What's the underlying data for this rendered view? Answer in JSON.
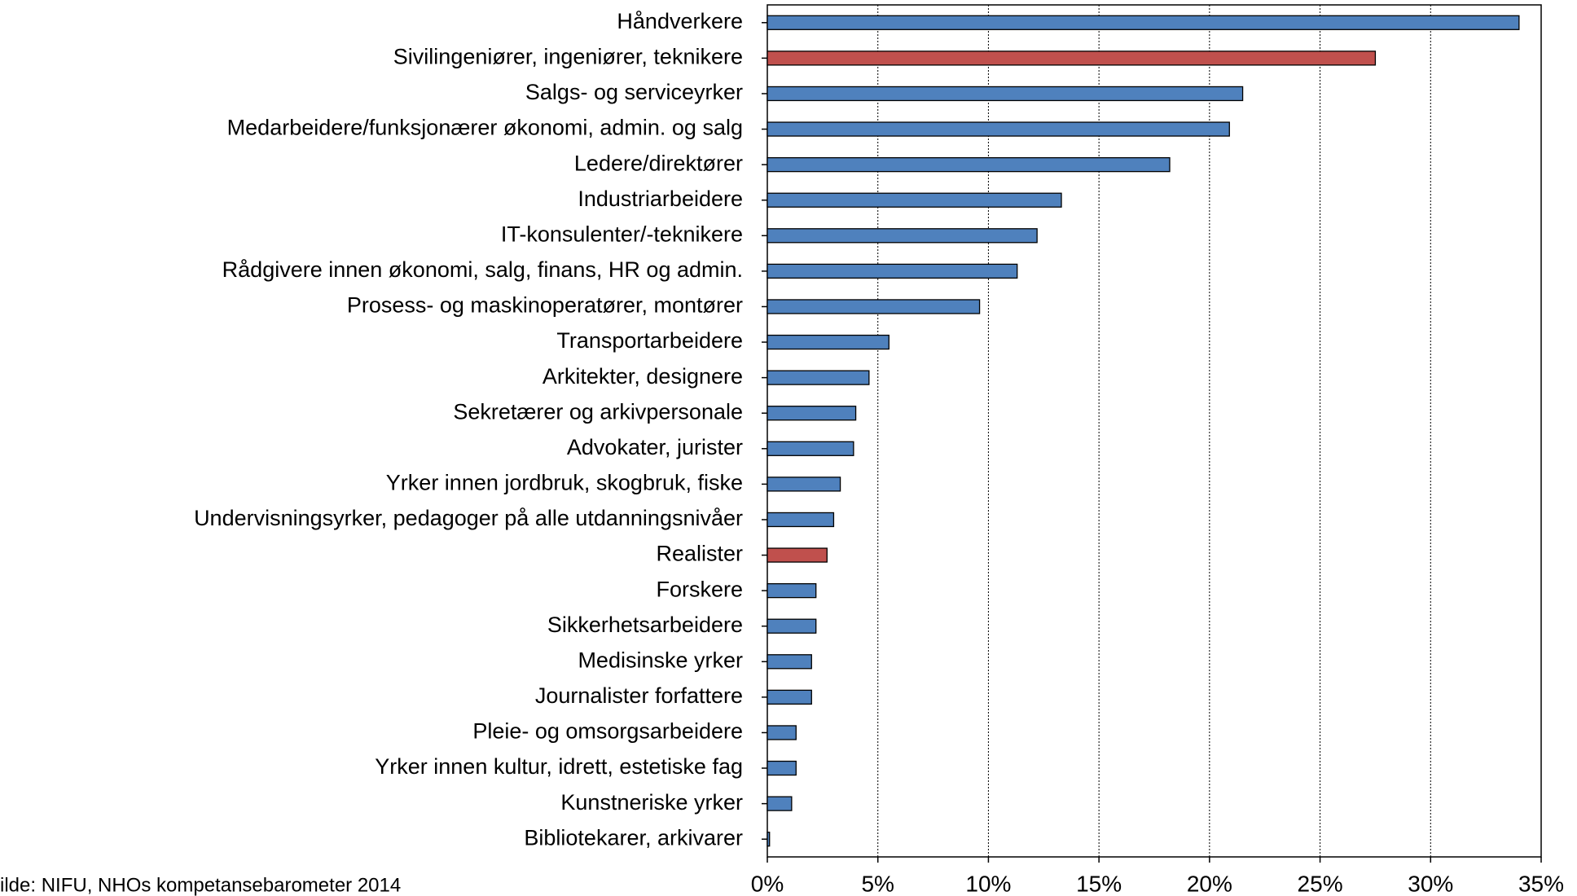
{
  "chart_data": {
    "type": "bar",
    "orientation": "horizontal",
    "categories": [
      "Håndverkere",
      "Sivilingeniører, ingeniører, teknikere",
      "Salgs- og serviceyrker",
      "Medarbeidere/funksjonærer økonomi, admin. og salg",
      "Ledere/direktører",
      "Industriarbeidere",
      "IT-konsulenter/-teknikere",
      "Rådgivere innen økonomi, salg, finans, HR og admin.",
      "Prosess- og maskinoperatører, montører",
      "Transportarbeidere",
      "Arkitekter, designere",
      "Sekretærer og arkivpersonale",
      "Advokater, jurister",
      "Yrker innen jordbruk, skogbruk, fiske",
      "Undervisningsyrker, pedagoger på alle utdanningsnivåer",
      "Realister",
      "Forskere",
      "Sikkerhetsarbeidere",
      "Medisinske yrker",
      "Journalister forfattere",
      "Pleie- og omsorgsarbeidere",
      "Yrker innen kultur, idrett, estetiske fag",
      "Kunstneriske yrker",
      "Bibliotekarer, arkivarer"
    ],
    "values": [
      34.0,
      27.5,
      21.5,
      20.9,
      18.2,
      13.3,
      12.2,
      11.3,
      9.6,
      5.5,
      4.6,
      4.0,
      3.9,
      3.3,
      3.0,
      2.7,
      2.2,
      2.2,
      2.0,
      2.0,
      1.3,
      1.3,
      1.1,
      0.1
    ],
    "colors": [
      "#4f81bd",
      "#c0504d",
      "#4f81bd",
      "#4f81bd",
      "#4f81bd",
      "#4f81bd",
      "#4f81bd",
      "#4f81bd",
      "#4f81bd",
      "#4f81bd",
      "#4f81bd",
      "#4f81bd",
      "#4f81bd",
      "#4f81bd",
      "#4f81bd",
      "#c0504d",
      "#4f81bd",
      "#4f81bd",
      "#4f81bd",
      "#4f81bd",
      "#4f81bd",
      "#4f81bd",
      "#4f81bd",
      "#4f81bd"
    ],
    "xlim": [
      0,
      35
    ],
    "xticks": [
      {
        "value": 0,
        "label": "0%"
      },
      {
        "value": 5,
        "label": "5%"
      },
      {
        "value": 10,
        "label": "10%"
      },
      {
        "value": 15,
        "label": "15%"
      },
      {
        "value": 20,
        "label": "20%"
      },
      {
        "value": 25,
        "label": "25%"
      },
      {
        "value": 30,
        "label": "30%"
      },
      {
        "value": 35,
        "label": "35%"
      }
    ],
    "grid": true,
    "source": "ilde: NIFU, NHOs kompetansebarometer 2014"
  }
}
